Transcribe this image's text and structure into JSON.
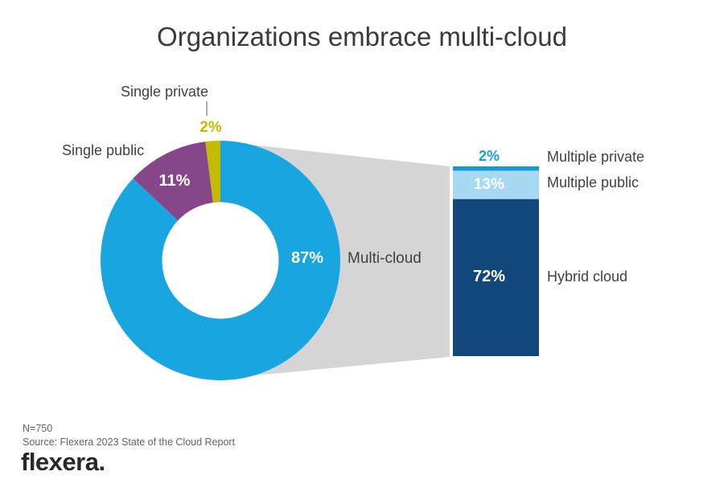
{
  "title": "Organizations embrace multi-cloud",
  "chart_data": {
    "type": "pie",
    "subtype": "donut-with-breakdown-bar",
    "title": "Organizations embrace multi-cloud",
    "donut": {
      "segments": [
        {
          "label": "Multi-cloud",
          "value": 87,
          "value_label": "87%",
          "color": "#18a5e0",
          "text_color": "#ffffff"
        },
        {
          "label": "Single public",
          "value": 11,
          "value_label": "11%",
          "color": "#864689",
          "text_color": "#ffffff"
        },
        {
          "label": "Single private",
          "value": 2,
          "value_label": "2%",
          "color": "#c3bb00",
          "text_color": "#c3bb00"
        }
      ],
      "start_angle_deg": 0,
      "direction": "clockwise"
    },
    "bar": {
      "description": "Breakdown of the 87% multi-cloud share",
      "segments": [
        {
          "label": "Multiple private",
          "value": 2,
          "value_label": "2%",
          "color": "#109bd6",
          "text_color": "#189cd8"
        },
        {
          "label": "Multiple public",
          "value": 13,
          "value_label": "13%",
          "color": "#a8d9f2",
          "text_color": "#ffffff"
        },
        {
          "label": "Hybrid cloud",
          "value": 72,
          "value_label": "72%",
          "color": "#12477c",
          "text_color": "#ffffff"
        }
      ]
    },
    "connector_band_color": "#d5d5d5",
    "legend_position": "inline-labels",
    "grid": false
  },
  "footer": {
    "n_label": "N=750",
    "source": "Source: Flexera 2023 State of the Cloud Report",
    "logo_text": "flexera."
  }
}
